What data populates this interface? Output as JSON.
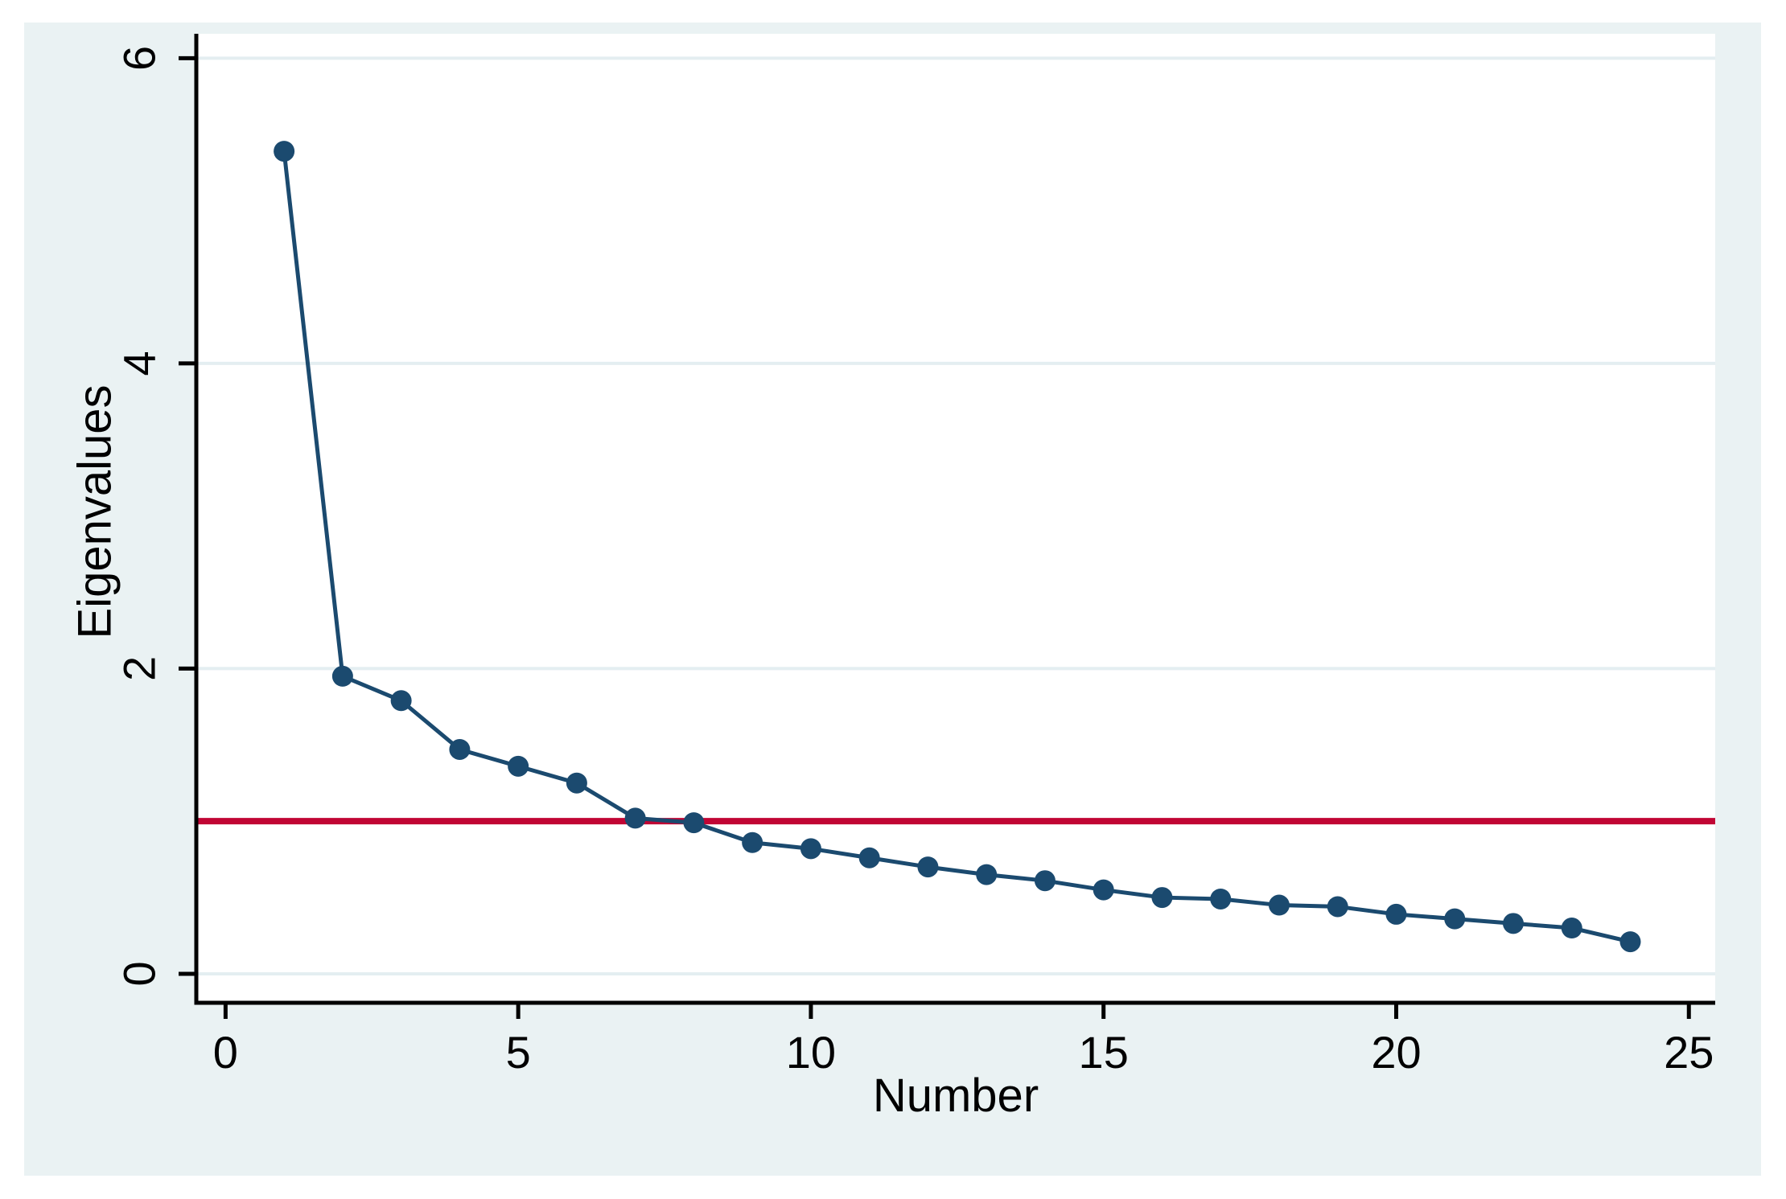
{
  "window": {
    "background_color": "#ffffff"
  },
  "graph": {
    "background_color": "#eaf2f3",
    "plot_background_color": "#ffffff",
    "axis_color": "#000000",
    "grid_color": "#e4eef1",
    "text_color": "#000000"
  },
  "chart_data": {
    "type": "line",
    "xlabel": "Number",
    "ylabel": "Eigenvalues",
    "x": [
      1,
      2,
      3,
      4,
      5,
      6,
      7,
      8,
      9,
      10,
      11,
      12,
      13,
      14,
      15,
      16,
      17,
      18,
      19,
      20,
      21,
      22,
      23,
      24
    ],
    "series": [
      {
        "name": "Eigenvalues",
        "color": "#1b4a6f",
        "marker": "circle",
        "values": [
          5.39,
          1.95,
          1.79,
          1.47,
          1.36,
          1.25,
          1.02,
          0.99,
          0.86,
          0.82,
          0.76,
          0.7,
          0.65,
          0.61,
          0.55,
          0.5,
          0.49,
          0.45,
          0.44,
          0.39,
          0.36,
          0.33,
          0.3,
          0.21
        ]
      }
    ],
    "reference_line": {
      "y": 1.0,
      "color": "#c10534"
    },
    "xticks": [
      0,
      5,
      10,
      15,
      20,
      25
    ],
    "yticks": [
      0,
      2,
      4,
      6
    ],
    "xlim": [
      -0.5,
      25.45
    ],
    "ylim": [
      -0.19,
      6.16
    ],
    "grid": "horizontal",
    "legend": "none",
    "ytick_label_rotation": -90,
    "ylabel_rotation": -90
  }
}
